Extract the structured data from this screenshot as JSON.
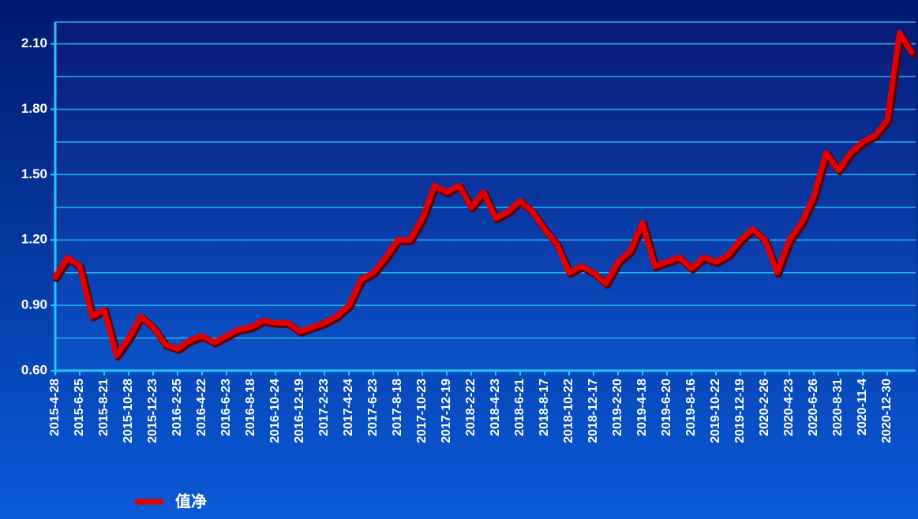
{
  "chart_data": {
    "type": "line",
    "categories": [
      "2015-4-28",
      null,
      "2015-6-25",
      null,
      "2015-8-21",
      null,
      "2015-10-28",
      null,
      "2015-12-23",
      null,
      "2016-2-25",
      null,
      "2016-4-22",
      null,
      "2016-6-23",
      null,
      "2016-8-18",
      null,
      "2016-10-24",
      null,
      "2016-12-19",
      null,
      "2017-2-23",
      null,
      "2017-4-24",
      null,
      "2017-6-23",
      null,
      "2017-8-18",
      null,
      "2017-10-23",
      null,
      "2017-12-19",
      null,
      "2018-2-22",
      null,
      "2018-4-23",
      null,
      "2018-6-21",
      null,
      "2018-8-17",
      null,
      "2018-10-22",
      null,
      "2018-12-17",
      null,
      "2019-2-20",
      null,
      "2019-4-18",
      null,
      "2019-6-20",
      null,
      "2019-8-16",
      null,
      "2019-10-22",
      null,
      "2019-12-19",
      null,
      "2020-2-26",
      null,
      "2020-4-23",
      null,
      "2020-6-26",
      null,
      "2020-8-31",
      null,
      "2020-11-4",
      null,
      "2020-12-30",
      null,
      null
    ],
    "series": [
      {
        "name": "值净",
        "color": "#e00000",
        "values": [
          1.03,
          1.12,
          1.08,
          0.85,
          0.88,
          0.67,
          0.75,
          0.85,
          0.8,
          0.72,
          0.7,
          0.74,
          0.76,
          0.73,
          0.76,
          0.79,
          0.8,
          0.83,
          0.82,
          0.82,
          0.78,
          0.8,
          0.82,
          0.85,
          0.9,
          1.02,
          1.05,
          1.12,
          1.2,
          1.2,
          1.3,
          1.45,
          1.42,
          1.45,
          1.35,
          1.42,
          1.3,
          1.33,
          1.38,
          1.33,
          1.25,
          1.18,
          1.05,
          1.08,
          1.05,
          1.0,
          1.1,
          1.15,
          1.28,
          1.08,
          1.1,
          1.12,
          1.07,
          1.12,
          1.1,
          1.13,
          1.2,
          1.25,
          1.2,
          1.05,
          1.2,
          1.28,
          1.4,
          1.6,
          1.52,
          1.6,
          1.65,
          1.68,
          1.75,
          2.15,
          2.06
        ]
      }
    ],
    "ylim": [
      0.6,
      2.2
    ],
    "yticks": [
      {
        "value": 0.6,
        "label": "0.60"
      },
      {
        "value": 0.9,
        "label": "0.90"
      },
      {
        "value": 1.2,
        "label": "1.20"
      },
      {
        "value": 1.5,
        "label": "1.50"
      },
      {
        "value": 1.8,
        "label": "1.80"
      },
      {
        "value": 2.1,
        "label": "2.10"
      }
    ],
    "ygrid": [
      0.75,
      1.05,
      1.35,
      1.65,
      1.95,
      2.2
    ],
    "grid": true
  }
}
